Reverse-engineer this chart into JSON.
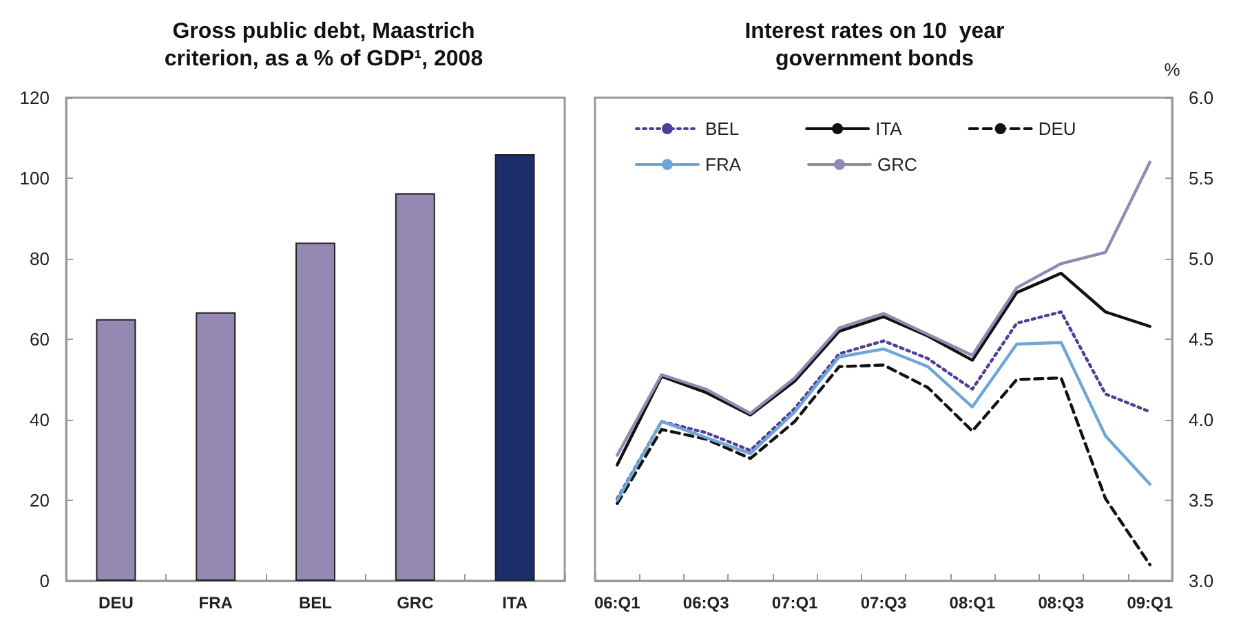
{
  "chart_data": [
    {
      "type": "bar",
      "title": "Gross public debt, Maastrich criterion, as a % of GDP¹, 2008",
      "categories": [
        "DEU",
        "FRA",
        "BEL",
        "GRC",
        "ITA"
      ],
      "values": [
        65,
        66.7,
        84,
        96.3,
        106
      ],
      "colors": [
        "#9589b4",
        "#9589b4",
        "#9589b4",
        "#9589b4",
        "#1c2e6a"
      ],
      "ylim": [
        0,
        120
      ],
      "yticks": [
        0,
        20,
        40,
        60,
        80,
        100,
        120
      ],
      "grid": false,
      "legend": false
    },
    {
      "type": "line",
      "title": "Interest rates on 10  year government bonds",
      "ylabel": "%",
      "categories": [
        "06:Q1",
        null,
        "06:Q3",
        null,
        "07:Q1",
        null,
        "07:Q3",
        null,
        "08:Q1",
        null,
        "08:Q3",
        null,
        "09:Q1"
      ],
      "series": [
        {
          "name": "BEL",
          "color": "#4b3f96",
          "line_style": "dotted",
          "values": [
            3.51,
            3.99,
            3.92,
            3.81,
            4.07,
            4.41,
            4.49,
            4.38,
            4.19,
            4.6,
            4.67,
            4.16,
            4.05
          ]
        },
        {
          "name": "ITA",
          "color": "#111111",
          "line_style": "solid",
          "values": [
            3.72,
            4.27,
            4.17,
            4.03,
            4.24,
            4.55,
            4.64,
            4.52,
            4.37,
            4.79,
            4.91,
            4.67,
            4.58
          ]
        },
        {
          "name": "DEU",
          "color": "#111111",
          "line_style": "dashed",
          "values": [
            3.48,
            3.94,
            3.88,
            3.76,
            3.99,
            4.33,
            4.34,
            4.2,
            3.93,
            4.25,
            4.26,
            3.51,
            3.1
          ]
        },
        {
          "name": "FRA",
          "color": "#6fa6d6",
          "line_style": "solid",
          "values": [
            3.5,
            3.99,
            3.89,
            3.79,
            4.05,
            4.39,
            4.44,
            4.33,
            4.08,
            4.47,
            4.48,
            3.9,
            3.6
          ]
        },
        {
          "name": "GRC",
          "color": "#9589b4",
          "line_style": "solid",
          "values": [
            3.78,
            4.28,
            4.19,
            4.04,
            4.26,
            4.57,
            4.66,
            4.53,
            4.4,
            4.82,
            4.97,
            5.04,
            5.6
          ]
        }
      ],
      "ylim": [
        3,
        6
      ],
      "yticks": [
        {
          "value": 3,
          "label": "3.0"
        },
        {
          "value": 3.5,
          "label": "3.5"
        },
        {
          "value": 4,
          "label": "4.0"
        },
        {
          "value": 4.5,
          "label": "4.5"
        },
        {
          "value": 5,
          "label": "5.0"
        },
        {
          "value": 5.5,
          "label": "5.5"
        },
        {
          "value": 6,
          "label": "6.0"
        }
      ],
      "grid": false,
      "legend": "top left",
      "marker": "none"
    }
  ]
}
